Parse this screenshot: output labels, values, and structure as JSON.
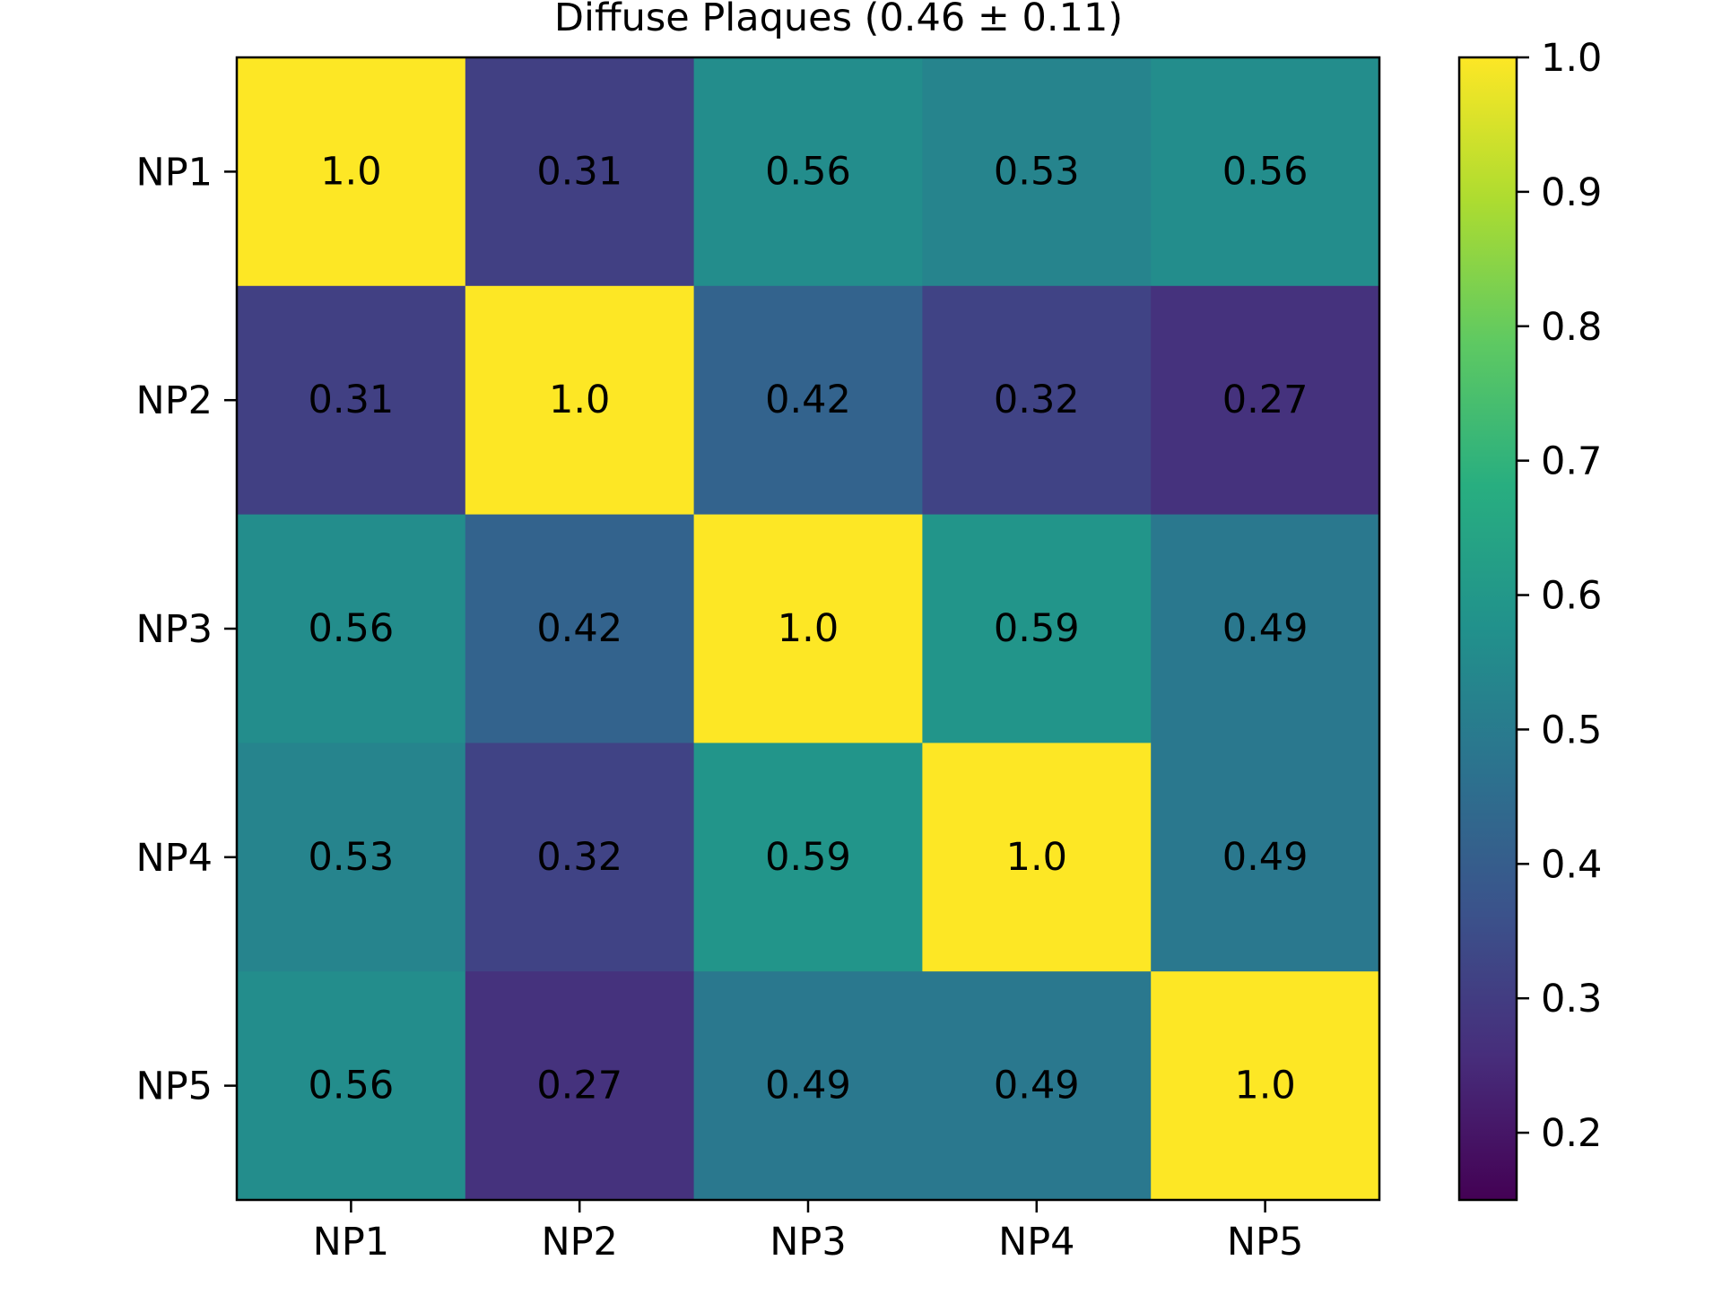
{
  "chart_data": {
    "type": "heatmap",
    "title": "Diffuse Plaques (0.46 ± 0.11)",
    "xlabel": "",
    "ylabel": "",
    "x_categories": [
      "NP1",
      "NP2",
      "NP3",
      "NP4",
      "NP5"
    ],
    "y_categories": [
      "NP1",
      "NP2",
      "NP3",
      "NP4",
      "NP5"
    ],
    "values": [
      [
        1.0,
        0.31,
        0.56,
        0.53,
        0.56
      ],
      [
        0.31,
        1.0,
        0.42,
        0.32,
        0.27
      ],
      [
        0.56,
        0.42,
        1.0,
        0.59,
        0.49
      ],
      [
        0.53,
        0.32,
        0.59,
        1.0,
        0.49
      ],
      [
        0.56,
        0.27,
        0.49,
        0.49,
        1.0
      ]
    ],
    "cell_labels": [
      [
        "1.0",
        "0.31",
        "0.56",
        "0.53",
        "0.56"
      ],
      [
        "0.31",
        "1.0",
        "0.42",
        "0.32",
        "0.27"
      ],
      [
        "0.56",
        "0.42",
        "1.0",
        "0.59",
        "0.49"
      ],
      [
        "0.53",
        "0.32",
        "0.59",
        "1.0",
        "0.49"
      ],
      [
        "0.56",
        "0.27",
        "0.49",
        "0.49",
        "1.0"
      ]
    ],
    "colormap": "viridis",
    "colorbar": {
      "range": [
        0.15,
        1.0
      ],
      "ticks": [
        0.2,
        0.3,
        0.4,
        0.5,
        0.6,
        0.7,
        0.8,
        0.9,
        1.0
      ],
      "tick_labels": [
        "0.2",
        "0.3",
        "0.4",
        "0.5",
        "0.6",
        "0.7",
        "0.8",
        "0.9",
        "1.0"
      ]
    },
    "grid": false
  }
}
